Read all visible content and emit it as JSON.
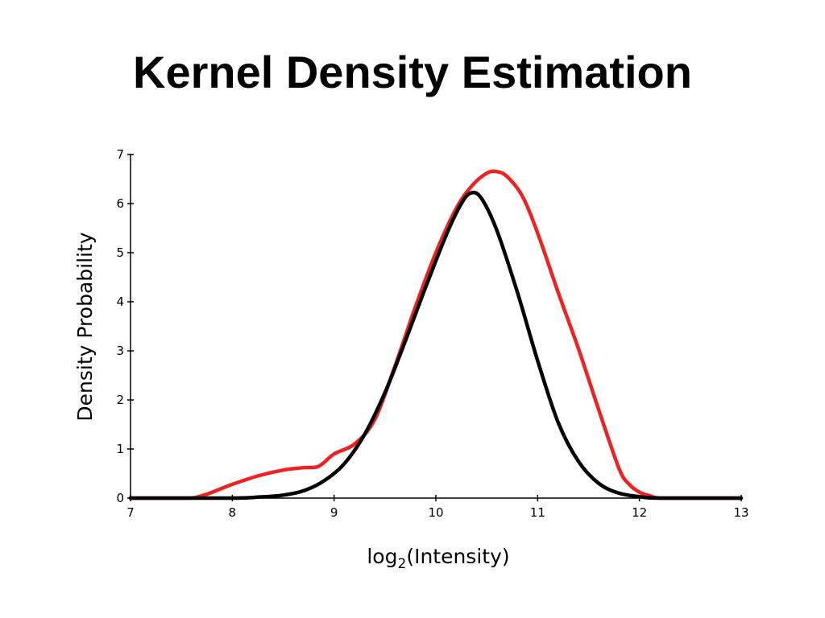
{
  "slide": {
    "title": "Kernel Density Estimation"
  },
  "chart_data": {
    "type": "line",
    "xlabel_base": "log",
    "xlabel_sub": "2",
    "xlabel_rest": "(Intensity)",
    "ylabel": "Density Probability",
    "xlim": [
      7,
      13
    ],
    "ylim": [
      0,
      7
    ],
    "xticks": [
      7,
      8,
      9,
      10,
      11,
      12,
      13
    ],
    "yticks": [
      0,
      1,
      2,
      3,
      4,
      5,
      6,
      7
    ],
    "grid": false,
    "series": [
      {
        "color": "#ee2222",
        "points": [
          [
            7.0,
            0.0
          ],
          [
            7.5,
            0.0
          ],
          [
            7.6,
            0.0
          ],
          [
            7.75,
            0.08
          ],
          [
            8.0,
            0.28
          ],
          [
            8.25,
            0.45
          ],
          [
            8.5,
            0.57
          ],
          [
            8.7,
            0.62
          ],
          [
            8.85,
            0.65
          ],
          [
            9.0,
            0.9
          ],
          [
            9.2,
            1.1
          ],
          [
            9.4,
            1.6
          ],
          [
            9.6,
            2.7
          ],
          [
            9.8,
            3.9
          ],
          [
            10.0,
            5.0
          ],
          [
            10.2,
            5.9
          ],
          [
            10.35,
            6.35
          ],
          [
            10.5,
            6.62
          ],
          [
            10.6,
            6.65
          ],
          [
            10.7,
            6.55
          ],
          [
            10.85,
            6.15
          ],
          [
            11.0,
            5.4
          ],
          [
            11.2,
            4.2
          ],
          [
            11.4,
            3.05
          ],
          [
            11.6,
            1.8
          ],
          [
            11.8,
            0.6
          ],
          [
            11.9,
            0.28
          ],
          [
            12.0,
            0.12
          ],
          [
            12.1,
            0.05
          ],
          [
            12.2,
            0.0
          ],
          [
            12.5,
            0.0
          ],
          [
            13.0,
            0.0
          ]
        ]
      },
      {
        "color": "#000000",
        "points": [
          [
            7.0,
            0.0
          ],
          [
            8.0,
            0.0
          ],
          [
            8.25,
            0.02
          ],
          [
            8.5,
            0.06
          ],
          [
            8.7,
            0.15
          ],
          [
            8.9,
            0.35
          ],
          [
            9.1,
            0.7
          ],
          [
            9.3,
            1.3
          ],
          [
            9.5,
            2.15
          ],
          [
            9.7,
            3.2
          ],
          [
            9.9,
            4.3
          ],
          [
            10.1,
            5.35
          ],
          [
            10.25,
            6.0
          ],
          [
            10.35,
            6.22
          ],
          [
            10.45,
            6.1
          ],
          [
            10.6,
            5.45
          ],
          [
            10.8,
            4.2
          ],
          [
            11.0,
            2.8
          ],
          [
            11.2,
            1.55
          ],
          [
            11.4,
            0.75
          ],
          [
            11.6,
            0.3
          ],
          [
            11.8,
            0.1
          ],
          [
            12.0,
            0.03
          ],
          [
            12.2,
            0.0
          ],
          [
            13.0,
            0.0
          ]
        ]
      }
    ]
  }
}
